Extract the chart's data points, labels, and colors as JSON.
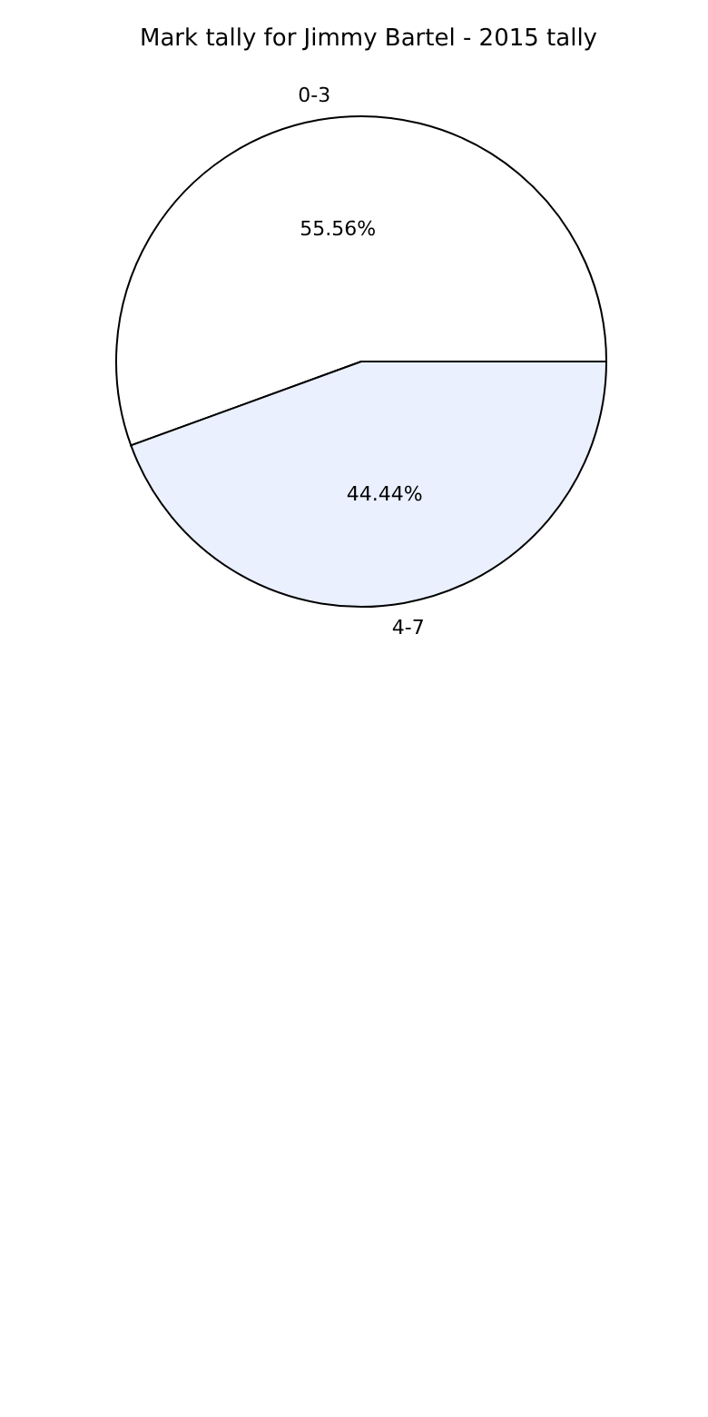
{
  "chart_data": {
    "type": "pie",
    "title": "Mark tally for Jimmy Bartel - 2015 tally",
    "categories": [
      "0-3",
      "4-7"
    ],
    "values": [
      55.56,
      44.44
    ],
    "value_labels": [
      "55.56%",
      "44.44%"
    ],
    "colors": [
      "#ffffff",
      "#eaf0fd"
    ],
    "legend": false
  }
}
